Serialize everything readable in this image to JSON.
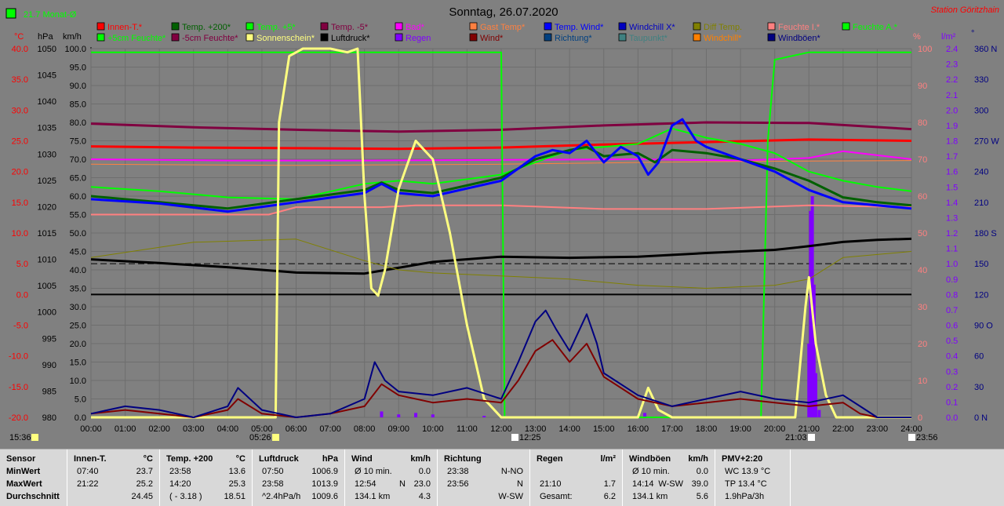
{
  "title": "Sonntag, 26.07.2020",
  "station": "Station Göritzhain",
  "month_avg_label": "21.7 Monat-Ø",
  "axis_units": {
    "temp": "°C",
    "pressure": "hPa",
    "speed": "km/h",
    "percent": "%",
    "rain": "l/m²",
    "deg": "°"
  },
  "colors": {
    "background": "#808080",
    "innen": "#ff0000",
    "temp200": "#006000",
    "temp5": "#00ff00",
    "temp_m5": "#800040",
    "bad": "#ff00ff",
    "gast": "#ff8040",
    "temp_wind": "#0000ff",
    "windchill_x": "#0000c0",
    "diff": "#808000",
    "feuchte_i": "#ff8080",
    "feuchte_a": "#00ff00",
    "feuchte5": "#00ff00",
    "feuchte_m5": "#800040",
    "sonne": "#ffff80",
    "luftdruck": "#000000",
    "regen": "#8000ff",
    "wind": "#800000",
    "richtung": "#004080",
    "taupunkt": "#408080",
    "windchill": "#ff8000",
    "windboeen": "#000080"
  },
  "legend": [
    [
      {
        "label": "Innen-T.*",
        "color": "#ff0000"
      },
      {
        "label": "Temp. +200*",
        "color": "#006000"
      },
      {
        "label": "Temp. +5*",
        "color": "#00ff00"
      },
      {
        "label": "Temp. -5*",
        "color": "#800040"
      },
      {
        "label": "Bad*",
        "color": "#ff00ff"
      },
      {
        "label": "Gast Temp*",
        "color": "#ff8040"
      },
      {
        "label": "Temp. Wind*",
        "color": "#0000ff"
      },
      {
        "label": "Windchill X*",
        "color": "#0000c0"
      },
      {
        "label": "Diff Temp.",
        "color": "#808000"
      },
      {
        "label": "Feuchte I.*",
        "color": "#ff8080"
      },
      {
        "label": "Feuchte A.*",
        "color": "#00ff00"
      }
    ],
    [
      {
        "label": "+5cm Feuchte*",
        "color": "#00ff00"
      },
      {
        "label": "-5cm Feuchte*",
        "color": "#800040"
      },
      {
        "label": "Sonnenschein*",
        "color": "#ffff80"
      },
      {
        "label": "Luftdruck*",
        "color": "#000000"
      },
      {
        "label": "Regen",
        "color": "#8000ff"
      },
      {
        "label": "Wind*",
        "color": "#800000"
      },
      {
        "label": "Richtung*",
        "color": "#004080"
      },
      {
        "label": "Taupunkt*",
        "color": "#408080"
      },
      {
        "label": "Windchill*",
        "color": "#ff8000"
      },
      {
        "label": "Windböen*",
        "color": "#000080"
      }
    ]
  ],
  "markers": {
    "left_time": "15:36",
    "sunrise": "05:26",
    "noon": "12:25",
    "sunset": "21:03",
    "right_time": "23:56"
  },
  "chart_data": {
    "type": "line",
    "x_ticks": [
      "00:00",
      "01:00",
      "02:00",
      "03:00",
      "04:00",
      "05:00",
      "06:00",
      "07:00",
      "08:00",
      "09:00",
      "10:00",
      "11:00",
      "12:00",
      "13:00",
      "14:00",
      "15:00",
      "16:00",
      "17:00",
      "18:00",
      "19:00",
      "20:00",
      "21:00",
      "22:00",
      "23:00",
      "24:00"
    ],
    "axes": {
      "temp": {
        "label": "°C",
        "ticks": [
          "40.0",
          "35.0",
          "30.0",
          "25.0",
          "20.0",
          "15.0",
          "10.0",
          "5.0",
          "0.0",
          "-5.0",
          "-10.0",
          "-15.0",
          "-20.0"
        ],
        "range": [
          -20,
          40
        ]
      },
      "pressure": {
        "label": "hPa",
        "ticks": [
          "1050",
          "1045",
          "1040",
          "1035",
          "1030",
          "1025",
          "1020",
          "1015",
          "1010",
          "1005",
          "1000",
          "995",
          "990",
          "985",
          "980"
        ],
        "range": [
          980,
          1050
        ]
      },
      "speed": {
        "label": "km/h",
        "ticks": [
          "100.0",
          "95.0",
          "90.0",
          "85.0",
          "80.0",
          "75.0",
          "70.0",
          "65.0",
          "60.0",
          "55.0",
          "50.0",
          "45.0",
          "40.0",
          "35.0",
          "30.0",
          "25.0",
          "20.0",
          "15.0",
          "10.0",
          "5.0",
          "0.0"
        ],
        "range": [
          0,
          100
        ]
      },
      "percent": {
        "label": "%",
        "ticks": [
          "100",
          "90",
          "80",
          "70",
          "60",
          "50",
          "40",
          "30",
          "20",
          "10",
          "0"
        ],
        "range": [
          0,
          100
        ]
      },
      "rain": {
        "label": "l/m²",
        "ticks": [
          "2.4",
          "2.3",
          "2.2",
          "2.1",
          "2.0",
          "1.9",
          "1.8",
          "1.7",
          "1.6",
          "1.5",
          "1.4",
          "1.3",
          "1.2",
          "1.1",
          "1.0",
          "0.9",
          "0.8",
          "0.7",
          "0.6",
          "0.5",
          "0.4",
          "0.3",
          "0.2",
          "0.1",
          "0.0"
        ],
        "range": [
          0,
          2.5
        ]
      },
      "direction": {
        "label": "°",
        "ticks": [
          "360 N",
          "330",
          "300",
          "270 W",
          "240",
          "210",
          "180 S",
          "150",
          "120",
          "90 O",
          "60",
          "30",
          "0 N"
        ],
        "range": [
          0,
          360
        ]
      }
    },
    "grid": true,
    "series": [
      {
        "name": "Innen-T.*",
        "axis": "temp",
        "color": "#ff0000",
        "width": 3,
        "x": [
          0,
          3,
          6,
          9,
          12,
          15,
          18,
          21,
          24
        ],
        "y": [
          24.1,
          23.9,
          23.8,
          23.7,
          23.9,
          24.4,
          24.8,
          25.2,
          25.0
        ]
      },
      {
        "name": "Temp. -5*",
        "axis": "temp",
        "color": "#800040",
        "width": 3,
        "x": [
          0,
          3,
          6,
          9,
          12,
          15,
          18,
          21,
          24
        ],
        "y": [
          27.8,
          27.2,
          26.8,
          26.5,
          26.8,
          27.5,
          28.0,
          27.9,
          26.9
        ]
      },
      {
        "name": "Bad*",
        "axis": "temp",
        "color": "#ff00ff",
        "width": 2,
        "x": [
          0,
          4,
          8,
          12,
          16,
          19,
          21,
          22,
          24
        ],
        "y": [
          22.0,
          21.8,
          21.8,
          21.9,
          22.0,
          21.8,
          22.2,
          23.3,
          22.0
        ]
      },
      {
        "name": "Gast Temp*",
        "axis": "temp",
        "color": "#ff8040",
        "width": 1,
        "x": [
          0,
          6,
          12,
          18,
          24
        ],
        "y": [
          21.2,
          21.0,
          21.2,
          21.6,
          21.8
        ]
      },
      {
        "name": "Feuchte I.*",
        "axis": "percent",
        "color": "#ff8080",
        "width": 2,
        "x": [
          0,
          4,
          5.2,
          6,
          8.5,
          9.5,
          12,
          15,
          18,
          21,
          24
        ],
        "y": [
          55,
          55,
          55,
          57,
          57,
          57.5,
          57.5,
          56.5,
          56.5,
          57.5,
          57
        ]
      },
      {
        "name": "Feuchte A.*",
        "axis": "percent",
        "color": "#00ff00",
        "width": 2,
        "x": [
          0,
          11.9,
          12.0,
          12.1,
          19.6,
          19.8,
          20.0,
          21,
          22,
          24
        ],
        "y": [
          99,
          99,
          99,
          0,
          0,
          75,
          97,
          99,
          99,
          99
        ]
      },
      {
        "name": "Temp. +5*",
        "axis": "temp",
        "color": "#00ff00",
        "width": 2,
        "x": [
          0,
          2,
          4,
          6,
          8,
          9,
          10,
          12,
          14,
          16,
          17,
          18,
          19,
          20,
          21,
          22,
          23,
          24
        ],
        "y": [
          17.5,
          16.8,
          15.8,
          15.5,
          18.0,
          18.5,
          18.0,
          19.5,
          23.5,
          24.5,
          27.0,
          25.5,
          24.5,
          23.0,
          20.0,
          18.5,
          17.5,
          16.8
        ]
      },
      {
        "name": "Temp. +200*",
        "axis": "temp",
        "color": "#006000",
        "width": 3,
        "x": [
          0,
          2,
          4,
          6,
          8,
          8.5,
          9,
          10,
          12,
          13,
          14,
          14.5,
          15,
          16,
          16.5,
          17,
          18,
          19,
          20,
          21,
          22,
          23,
          24
        ],
        "y": [
          16.0,
          15.0,
          14.0,
          15.5,
          17.0,
          18.2,
          17.0,
          16.5,
          19.0,
          22.0,
          23.5,
          24.0,
          22.5,
          23.0,
          21.5,
          23.5,
          23.0,
          22.0,
          20.5,
          18.5,
          15.8,
          15.0,
          14.5
        ]
      },
      {
        "name": "Temp. Wind*",
        "axis": "temp",
        "color": "#0000ff",
        "width": 3,
        "x": [
          0,
          2,
          4,
          6,
          8,
          8.5,
          9,
          10,
          12,
          13,
          13.5,
          14,
          14.5,
          15,
          15.5,
          16,
          16.3,
          16.6,
          17,
          17.3,
          17.7,
          18,
          19,
          20,
          21,
          22,
          23,
          24
        ],
        "y": [
          15.5,
          14.8,
          13.5,
          15.0,
          16.5,
          18.0,
          16.5,
          16.0,
          18.5,
          22.5,
          23.5,
          23.0,
          25.0,
          21.5,
          24.0,
          22.5,
          19.5,
          21.5,
          27.5,
          28.5,
          25.0,
          24.0,
          22.0,
          20.0,
          17.0,
          15.0,
          14.5,
          14.0
        ]
      },
      {
        "name": "Luftdruck*",
        "axis": "pressure",
        "color": "#000000",
        "width": 3,
        "x": [
          0,
          2,
          4,
          6,
          8,
          10,
          12,
          14,
          16,
          18,
          20,
          21,
          22,
          23,
          24
        ],
        "y": [
          1010.0,
          1009.3,
          1008.5,
          1007.5,
          1007.3,
          1009.5,
          1010.5,
          1010.3,
          1010.5,
          1011.2,
          1011.8,
          1012.5,
          1013.3,
          1013.7,
          1013.9
        ]
      },
      {
        "name": "Diff Temp.",
        "axis": "temp",
        "color": "#808000",
        "width": 1,
        "x": [
          0,
          3,
          6,
          8,
          9,
          10,
          12,
          14,
          16,
          18,
          20,
          21,
          22,
          24
        ],
        "y": [
          6.0,
          8.5,
          9.0,
          5.5,
          4.0,
          3.5,
          3.0,
          2.5,
          1.5,
          1.0,
          1.5,
          2.5,
          6.0,
          7.0
        ]
      },
      {
        "name": "Sonnenschein*",
        "axis": "percent",
        "color": "#ffff80",
        "width": 3,
        "x": [
          0,
          5.4,
          5.5,
          5.8,
          6.2,
          7.0,
          7.5,
          7.8,
          8.0,
          8.2,
          8.4,
          8.6,
          9.0,
          9.5,
          10.0,
          10.5,
          11.0,
          11.5,
          12.0,
          16.0,
          16.3,
          16.6,
          17.0,
          20.6,
          20.9,
          21.0,
          21.2,
          21.5,
          21.8,
          24
        ],
        "y": [
          0,
          0,
          80,
          98,
          100,
          100,
          99,
          100,
          60,
          35,
          33,
          40,
          62,
          75,
          70,
          50,
          25,
          5,
          0,
          0,
          8,
          2,
          0,
          0,
          30,
          38,
          20,
          6,
          0,
          0
        ]
      },
      {
        "name": "Wind*",
        "axis": "speed",
        "color": "#800000",
        "width": 2,
        "x": [
          0,
          1,
          2,
          3,
          4,
          4.3,
          5,
          6,
          7,
          8,
          8.5,
          9,
          10,
          11,
          12,
          12.5,
          13,
          13.5,
          14,
          14.5,
          15,
          16,
          17,
          18,
          19,
          20,
          21,
          22,
          22.5,
          23,
          24
        ],
        "y": [
          1,
          2,
          1,
          0,
          2,
          5,
          1,
          0,
          1,
          3,
          9,
          6,
          4,
          5,
          4,
          10,
          18,
          21,
          15,
          20,
          11,
          5,
          3,
          4,
          5,
          4,
          3,
          4,
          1,
          0,
          0
        ]
      },
      {
        "name": "Windböen*",
        "axis": "speed",
        "color": "#000080",
        "width": 2,
        "x": [
          0,
          1,
          2,
          3,
          4,
          4.3,
          5,
          6,
          7,
          8,
          8.3,
          8.6,
          9,
          10,
          11,
          12,
          12.5,
          13,
          13.3,
          13.6,
          14,
          14.5,
          14.8,
          15,
          16,
          17,
          18,
          19,
          20,
          21,
          22,
          22.5,
          23,
          24
        ],
        "y": [
          1,
          3,
          2,
          0,
          3,
          8,
          2,
          0,
          1,
          5,
          15,
          10,
          7,
          6,
          8,
          5,
          15,
          26,
          29,
          24,
          18,
          28,
          20,
          12,
          6,
          3,
          5,
          7,
          5,
          4,
          6,
          3,
          0,
          0
        ]
      }
    ],
    "rain": {
      "x": [
        8.5,
        9.0,
        9.5,
        10.0,
        11.5,
        16.2,
        21.0,
        21.05,
        21.1,
        21.15,
        21.2,
        21.3
      ],
      "y": [
        0.04,
        0.02,
        0.03,
        0.02,
        0.01,
        0.03,
        0.5,
        1.4,
        1.5,
        0.9,
        0.3,
        0.05
      ]
    }
  },
  "footer": [
    {
      "title": "Sensor",
      "unit": "",
      "rows": [
        [
          "MinWert",
          "",
          ""
        ],
        [
          "MaxWert",
          "",
          ""
        ],
        [
          "Durchschnitt",
          "",
          ""
        ]
      ]
    },
    {
      "title": "Innen-T.",
      "unit": "°C",
      "rows": [
        [
          "07:40",
          "",
          "23.7"
        ],
        [
          "21:22",
          "",
          "25.2"
        ],
        [
          "",
          "",
          "24.45"
        ]
      ]
    },
    {
      "title": "Temp. +200",
      "unit": "°C",
      "rows": [
        [
          "23:58",
          "",
          "13.6"
        ],
        [
          "14:20",
          "",
          "25.3"
        ],
        [
          "( - 3.18 )",
          "",
          "18.51"
        ]
      ]
    },
    {
      "title": "Luftdruck",
      "unit": "hPa",
      "rows": [
        [
          "07:50",
          "",
          "1006.9"
        ],
        [
          "23:58",
          "",
          "1013.9"
        ],
        [
          "^2.4hPa/h",
          "",
          "1009.6"
        ]
      ]
    },
    {
      "title": "Wind",
      "unit": "km/h",
      "rows": [
        [
          "Ø 10 min.",
          "",
          "0.0"
        ],
        [
          "12:54",
          "N",
          "23.0"
        ],
        [
          "134.1 km",
          "",
          "4.3"
        ]
      ]
    },
    {
      "title": "Richtung",
      "unit": "",
      "rows": [
        [
          "23:38",
          "",
          "N-NO"
        ],
        [
          "23:56",
          "",
          "N"
        ],
        [
          "",
          "",
          "W-SW"
        ]
      ]
    },
    {
      "title": "Regen",
      "unit": "l/m²",
      "rows": [
        [
          "",
          "",
          ""
        ],
        [
          "21:10",
          "",
          "1.7"
        ],
        [
          "Gesamt:",
          "",
          "6.2"
        ]
      ]
    },
    {
      "title": "Windböen",
      "unit": "km/h",
      "rows": [
        [
          "Ø 10 min.",
          "",
          "0.0"
        ],
        [
          "14:14",
          "W-SW",
          "39.0"
        ],
        [
          "134.1 km",
          "",
          "5.6"
        ]
      ]
    },
    {
      "title": "PMV+2:20",
      "unit": "",
      "rows": [
        [
          "WC 13.9 °C",
          "",
          ""
        ],
        [
          "TP 13.4 °C",
          "",
          ""
        ],
        [
          "1.9hPa/3h",
          "",
          ""
        ]
      ]
    }
  ]
}
